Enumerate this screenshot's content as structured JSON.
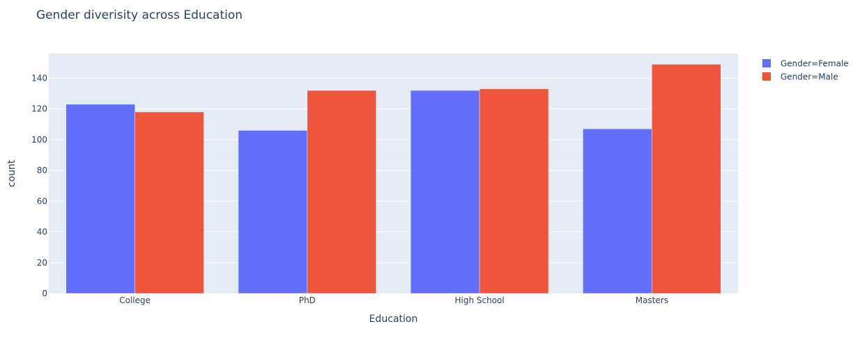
{
  "chart_data": {
    "type": "bar",
    "title": "Gender diverisity across Education",
    "xlabel": "Education",
    "ylabel": "count",
    "categories": [
      "College",
      "PhD",
      "High School",
      "Masters"
    ],
    "series": [
      {
        "name": "Gender=Female",
        "color": "#636efa",
        "values": [
          123,
          106,
          132,
          107
        ]
      },
      {
        "name": "Gender=Male",
        "color": "#ef553b",
        "values": [
          118,
          132,
          133,
          149
        ]
      }
    ],
    "ylim": [
      0,
      156
    ],
    "yticks": [
      0,
      20,
      40,
      60,
      80,
      100,
      120,
      140
    ],
    "grid": true,
    "legend_position": "top-right",
    "plot_background": "#e5ecf6"
  }
}
